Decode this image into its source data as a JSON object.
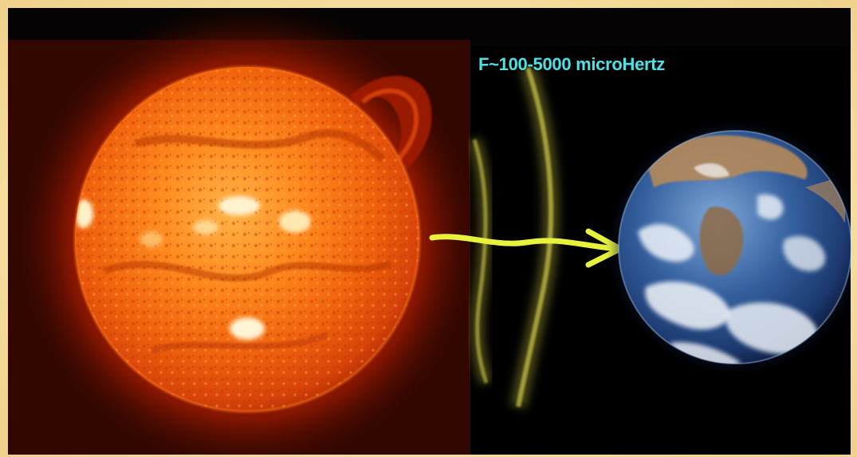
{
  "caption": "F~100-5000 microHertz",
  "colors": {
    "caption": "#4fe0e6",
    "arrow": "#e8f23c",
    "waves": "#d9d64a",
    "frame": "#f6e2a6",
    "background": "#000000"
  },
  "icons": [
    "sun-image",
    "earth-image",
    "wave-fronts",
    "arrow-icon"
  ]
}
